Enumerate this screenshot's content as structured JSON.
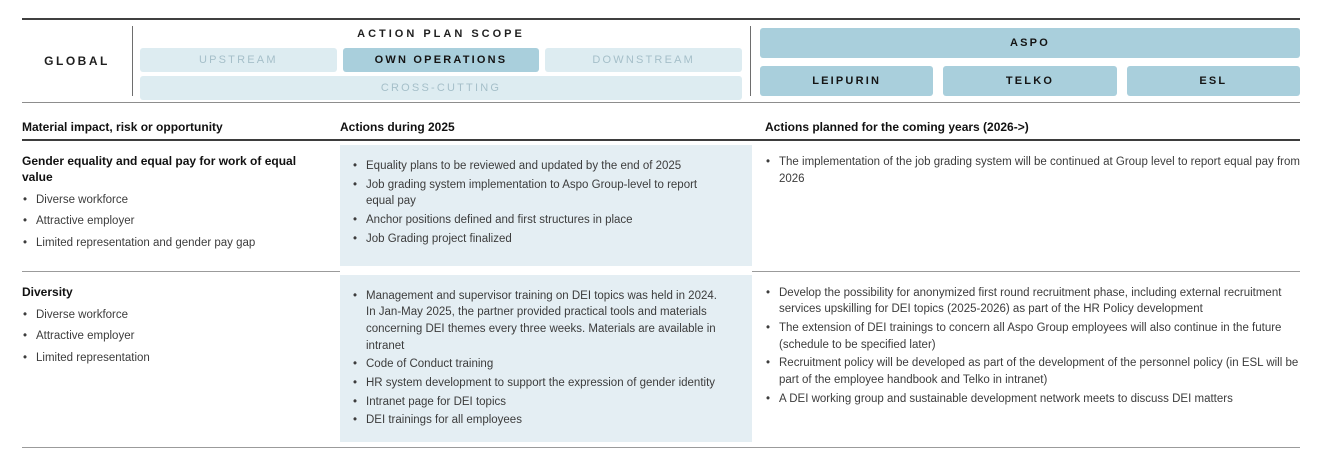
{
  "scope": {
    "global_label": "GLOBAL",
    "action_plan_title": "ACTION PLAN SCOPE",
    "upstream": "UPSTREAM",
    "own_operations": "OWN OPERATIONS",
    "downstream": "DOWNSTREAM",
    "cross_cutting": "CROSS-CUTTING",
    "aspo": "ASPO",
    "leipurin": "LEIPURIN",
    "telko": "TELKO",
    "esl": "ESL"
  },
  "colors": {
    "active_chip_bg": "#a9cfdc",
    "inactive_chip_bg": "#ddecf1",
    "inactive_chip_text": "#a5bfc9",
    "actions_cell_bg": "#e4eef3"
  },
  "table": {
    "headers": {
      "impact": "Material impact, risk or opportunity",
      "actions_2025": "Actions during 2025",
      "actions_future": "Actions planned for the coming years (2026->)"
    },
    "rows": [
      {
        "impact_title": "Gender equality and equal pay for work of equal value",
        "impact_bullets": [
          "Diverse workforce",
          "Attractive employer",
          "Limited representation and gender pay gap"
        ],
        "actions_2025": [
          "Equality plans to be reviewed and updated by the end of 2025",
          "Job grading system implementation to Aspo Group-level to report equal pay",
          "Anchor positions defined and first structures in place",
          "Job Grading project finalized"
        ],
        "actions_future": [
          "The implementation of the job grading system will be continued at Group level to report equal pay from 2026"
        ]
      },
      {
        "impact_title": "Diversity",
        "impact_bullets": [
          "Diverse workforce",
          "Attractive employer",
          "Limited representation"
        ],
        "actions_2025": [
          "Management and supervisor training on DEI topics was held in 2024. In Jan-May 2025, the partner provided practical tools and materials concerning DEI themes every three weeks. Materials are available in intranet",
          "Code of Conduct training",
          "HR system development to support the expression of gender identity",
          "Intranet page for DEI topics",
          "DEI trainings for all employees"
        ],
        "actions_future": [
          "Develop the possibility for anonymized first round recruitment phase, including external recruitment services upskilling for DEI topics (2025-2026) as part of the HR Policy development",
          "The extension of DEI trainings to concern all Aspo Group employees will also continue in the future (schedule to be specified later)",
          "Recruitment policy will be developed as part of the development of the personnel policy (in ESL will be part of the employee handbook and Telko in intranet)",
          "A DEI working group and sustainable development network meets to discuss DEI matters"
        ]
      }
    ]
  }
}
